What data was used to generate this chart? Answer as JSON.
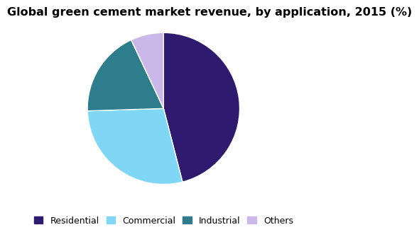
{
  "title": "Global green cement market revenue, by application, 2015 (%)",
  "labels": [
    "Residential",
    "Commercial",
    "Industrial",
    "Others"
  ],
  "values": [
    46.0,
    28.5,
    18.5,
    7.0
  ],
  "colors": [
    "#2e1a6e",
    "#7fd7f5",
    "#2e7d8c",
    "#c9b8e8"
  ],
  "startangle": 90,
  "legend_labels": [
    "Residential",
    "Commercial",
    "Industrial",
    "Others"
  ],
  "background_color": "#ffffff",
  "title_fontsize": 11.5,
  "legend_fontsize": 9
}
